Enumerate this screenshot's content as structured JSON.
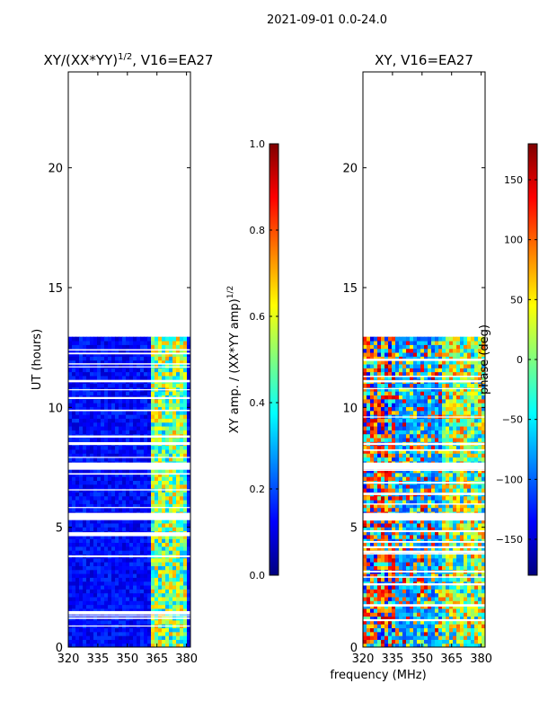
{
  "suptitle": "2021-09-01 0.0-24.0",
  "colormap_stops": [
    "#00007f",
    "#0000ff",
    "#007fff",
    "#00ffff",
    "#7fff7f",
    "#ffff00",
    "#ff7f00",
    "#ff0000",
    "#7f0000"
  ],
  "chart_data": [
    {
      "type": "heatmap",
      "title_main": "XY/(XX*YY)",
      "title_sup": "1/2",
      "title_tail": ", V16=EA27",
      "xlabel": "",
      "ylabel": "UT (hours)",
      "xlim": [
        320,
        382
      ],
      "ylim": [
        0,
        24
      ],
      "xticks": [
        "320",
        "335",
        "350",
        "365",
        "380"
      ],
      "xtick_values": [
        320,
        335,
        350,
        365,
        380
      ],
      "yticks": [
        "0",
        "5",
        "10",
        "15",
        "20"
      ],
      "ytick_values": [
        0,
        5,
        10,
        15,
        20
      ],
      "data_time_range_hours": [
        0,
        12.95
      ],
      "flagged_time_ranges_hours": [
        [
          5.3,
          5.6
        ],
        [
          7.5,
          7.7
        ],
        [
          0.3,
          0.4
        ],
        [
          9.3,
          9.4
        ]
      ],
      "colorbar": {
        "label_main": "XY amp. / (XX*YY amp)",
        "label_sup": "1/2",
        "min": 0.0,
        "max": 1.0,
        "ticks": [
          "0.0",
          "0.2",
          "0.4",
          "0.6",
          "0.8",
          "1.0"
        ],
        "tick_values": [
          0.0,
          0.2,
          0.4,
          0.6,
          0.8,
          1.0
        ]
      }
    },
    {
      "type": "heatmap",
      "title_main": "XY, V16=EA27",
      "xlabel": "frequency (MHz)",
      "ylabel": "",
      "xlim": [
        320,
        382
      ],
      "ylim": [
        0,
        24
      ],
      "xticks": [
        "320",
        "335",
        "350",
        "365",
        "380"
      ],
      "xtick_values": [
        320,
        335,
        350,
        365,
        380
      ],
      "yticks": [
        "0",
        "5",
        "10",
        "15",
        "20"
      ],
      "ytick_values": [
        0,
        5,
        10,
        15,
        20
      ],
      "data_time_range_hours": [
        0,
        12.95
      ],
      "colorbar": {
        "label_main": "phase (deg)",
        "min": -180,
        "max": 180,
        "ticks": [
          "150",
          "100",
          "50",
          "0",
          "−50",
          "−100",
          "−150"
        ],
        "tick_values": [
          150,
          100,
          50,
          0,
          -50,
          -100,
          -150
        ]
      }
    }
  ]
}
